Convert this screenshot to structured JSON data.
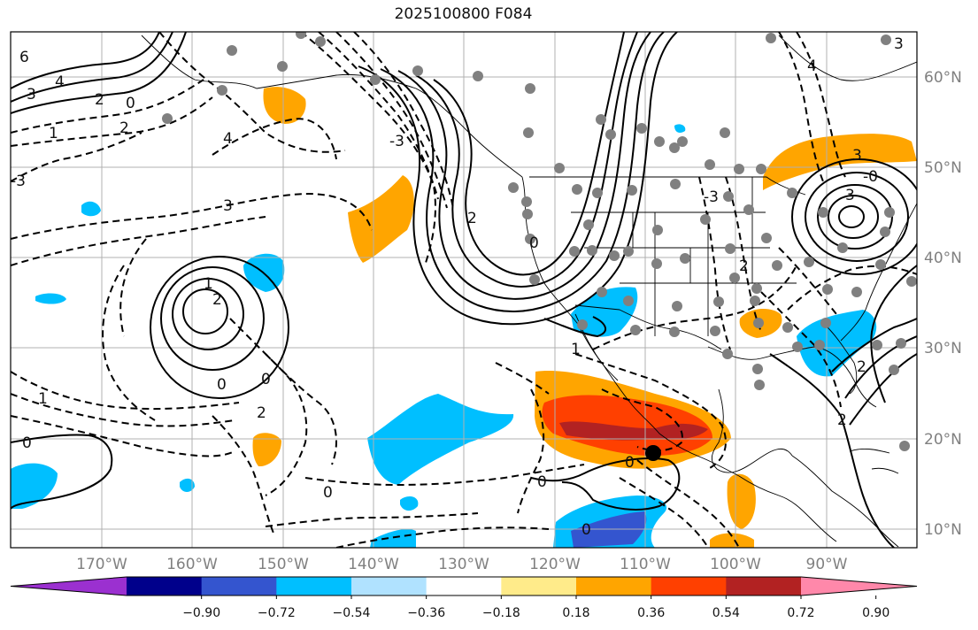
{
  "title": "2025100800 F084",
  "latitude_labels": [
    "60°N",
    "50°N",
    "40°N",
    "30°N",
    "20°N",
    "10°N"
  ],
  "longitude_labels": [
    "170°W",
    "160°W",
    "150°W",
    "140°W",
    "130°W",
    "120°W",
    "110°W",
    "100°W",
    "90°W"
  ],
  "colorbar": {
    "ticks": [
      "−0.90",
      "−0.72",
      "−0.54",
      "−0.36",
      "−0.18",
      "0.18",
      "0.36",
      "0.54",
      "0.72",
      "0.90"
    ],
    "colors": [
      "#9b30d0",
      "#00008b",
      "#3455cf",
      "#00bfff",
      "#b0e2ff",
      "#ffffff",
      "#ffeb8a",
      "#ffa500",
      "#ff4000",
      "#b22222",
      "#ff88aa"
    ]
  },
  "contour_labels": [
    "6",
    "4",
    "3",
    "2",
    "0",
    "1",
    "4",
    "2",
    "3",
    "-3",
    "2",
    "1",
    "0",
    "0",
    "1",
    "2",
    "0",
    "0",
    "0",
    "-3",
    "2",
    "3",
    "2",
    "0",
    "4",
    "1",
    "2",
    "3",
    "0",
    "-3",
    "2",
    "3",
    "-0",
    "0"
  ],
  "colors": {
    "positive_anomaly": "#ffa500",
    "strong_positive": "#ff4000",
    "very_strong_positive": "#b22222",
    "negative_anomaly": "#00bfff",
    "strong_negative": "#3455cf",
    "station": "#808080",
    "marker": "#000000"
  }
}
